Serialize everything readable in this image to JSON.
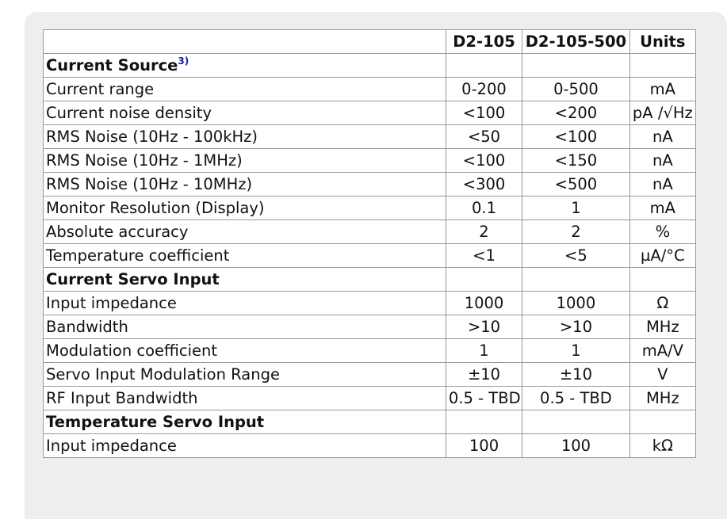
{
  "header": [
    "",
    "D2-105",
    "D2-105-500",
    "Units"
  ],
  "sections": [
    {
      "title": "Current Source",
      "footnote": "3)",
      "rows": [
        [
          "Current range",
          "0-200",
          "0-500",
          "mA"
        ],
        [
          "Current noise density",
          "<100",
          "<200",
          "pA /√Hz"
        ],
        [
          "RMS Noise (10Hz - 100kHz)",
          "<50",
          "<100",
          "nA"
        ],
        [
          "RMS Noise (10Hz - 1MHz)",
          "<100",
          "<150",
          "nA"
        ],
        [
          "RMS Noise (10Hz - 10MHz)",
          "<300",
          "<500",
          "nA"
        ],
        [
          "Monitor Resolution (Display)",
          "0.1",
          "1",
          "mA"
        ],
        [
          "Absolute accuracy",
          "2",
          "2",
          "%"
        ],
        [
          "Temperature coefficient",
          "<1",
          "<5",
          "µA/°C"
        ]
      ]
    },
    {
      "title": "Current Servo Input",
      "footnote": "",
      "rows": [
        [
          "Input impedance",
          "1000",
          "1000",
          "Ω"
        ],
        [
          "Bandwidth",
          ">10",
          ">10",
          "MHz"
        ],
        [
          "Modulation coefficient",
          "1",
          "1",
          "mA/V"
        ],
        [
          "Servo Input Modulation Range",
          "±10",
          "±10",
          "V"
        ],
        [
          "RF Input Bandwidth",
          "0.5 - TBD",
          "0.5 - TBD",
          "MHz"
        ]
      ]
    },
    {
      "title": "Temperature Servo Input",
      "footnote": "",
      "rows": [
        [
          "Input impedance",
          "100",
          "100",
          "kΩ"
        ]
      ]
    }
  ]
}
